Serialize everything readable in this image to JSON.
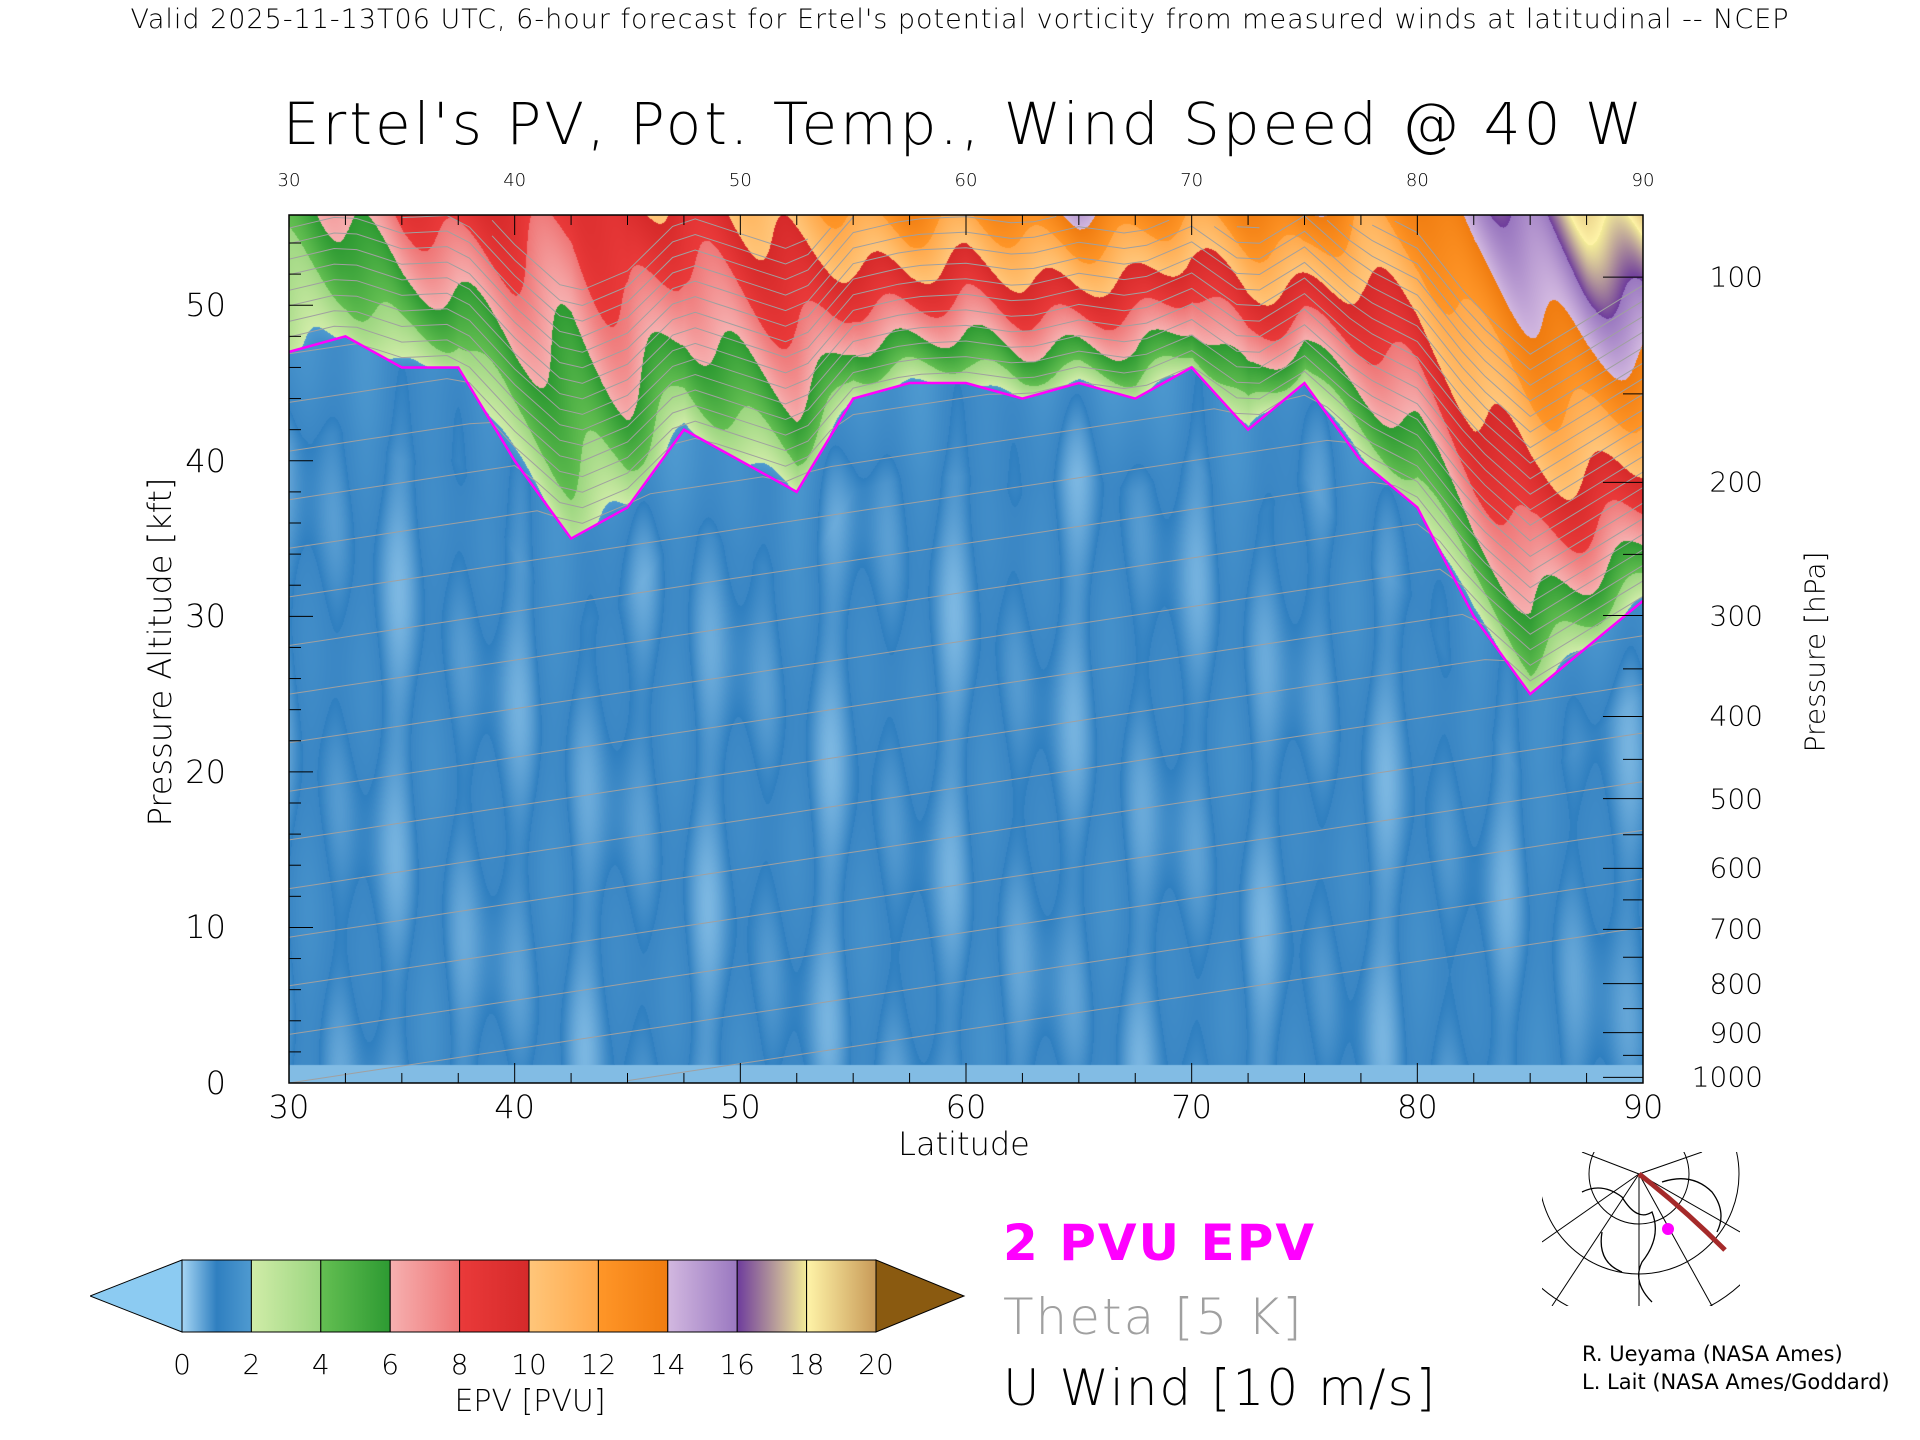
{
  "header": "Valid 2025-11-13T06 UTC, 6-hour forecast for Ertel's potential vorticity from measured winds at latitudinal -- NCEP",
  "legend": {
    "pv_line": "2 PVU EPV",
    "theta": "Theta [5 K]",
    "wind": "U Wind [10 m/s]",
    "pv_color": "#ff00ff",
    "theta_color": "#a0a0a0"
  },
  "credits": [
    "R. Ueyama (NASA Ames)",
    "L. Lait (NASA Ames/Goddard)"
  ],
  "chart_data": {
    "type": "heatmap",
    "title": "Ertel's PV, Pot. Temp., Wind Speed @ 40 W",
    "xlabel": "Latitude",
    "ylabel": "Pressure Altitude [kft]",
    "y2label": "Pressure [hPa]",
    "xlim": [
      30,
      90
    ],
    "ylim": [
      0,
      55.8
    ],
    "x_ticks": [
      "30",
      "40",
      "50",
      "60",
      "70",
      "80",
      "90"
    ],
    "x_tick_values": [
      30,
      40,
      50,
      60,
      70,
      80,
      90
    ],
    "y_ticks": [
      "0",
      "10",
      "20",
      "30",
      "40",
      "50"
    ],
    "y_tick_values": [
      0,
      10,
      20,
      30,
      40,
      50
    ],
    "pressure_ticks": [
      "100",
      "200",
      "300",
      "400",
      "500",
      "600",
      "700",
      "800",
      "900",
      "1000"
    ],
    "pressure_tick_values": [
      100,
      200,
      300,
      400,
      500,
      600,
      700,
      800,
      900,
      1000
    ],
    "pv2_latitudes": [
      30,
      32.5,
      35,
      37.5,
      40,
      42.5,
      45,
      47.5,
      50,
      52.5,
      55,
      57.5,
      60,
      62.5,
      65,
      67.5,
      70,
      72.5,
      75,
      77.5,
      80,
      82.5,
      85,
      87.5,
      90
    ],
    "pv2_height_kft": [
      47,
      48,
      46,
      46,
      40,
      35,
      37,
      42,
      40,
      38,
      44,
      45,
      45,
      44,
      45,
      44,
      46,
      42,
      45,
      40,
      37,
      30,
      25,
      28,
      31
    ],
    "pv_at_top_pvu": [
      5,
      6,
      8,
      9,
      9,
      8,
      10,
      9,
      10,
      11,
      12,
      13,
      12,
      13,
      14,
      13,
      12,
      13,
      14,
      12,
      13,
      15,
      16,
      18,
      19
    ],
    "colorbar": {
      "label": "EPV [PVU]",
      "ticks": [
        "0",
        "2",
        "4",
        "6",
        "8",
        "10",
        "12",
        "14",
        "16",
        "18",
        "20"
      ],
      "range": [
        0,
        20
      ],
      "under_color": "#8ccbf2",
      "over_color": "#8a5a10",
      "segments": [
        [
          "#a6d6f4",
          "#2f7fc0"
        ],
        [
          "#3a86c4",
          "#4f9ad0"
        ],
        [
          "#d0eca8",
          "#9cd680"
        ],
        [
          "#64bf52",
          "#2d9a32"
        ],
        [
          "#f6b0b0",
          "#ef7676"
        ],
        [
          "#ea3a3a",
          "#d62a2a"
        ],
        [
          "#ffc67a",
          "#ffa84a"
        ],
        [
          "#ff9628",
          "#f07c10"
        ],
        [
          "#d2b8e0",
          "#9a78c0"
        ],
        [
          "#6e3c9c",
          "#f4ec98"
        ],
        [
          "#fff4a8",
          "#c89a58"
        ]
      ]
    }
  }
}
